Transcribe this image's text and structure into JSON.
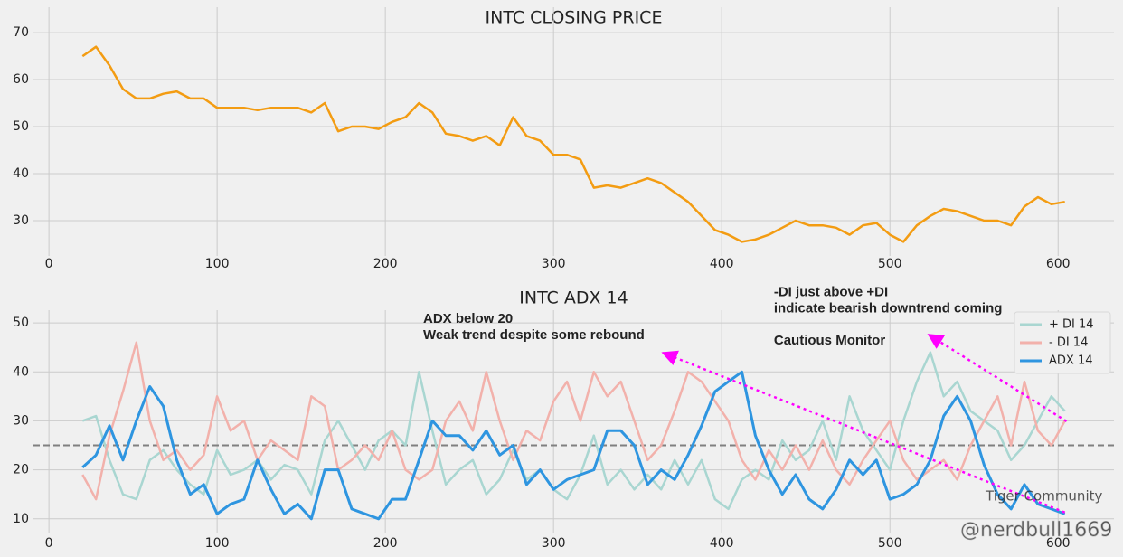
{
  "chart_data": [
    {
      "type": "line",
      "title": "INTC CLOSING PRICE",
      "x": [
        20,
        28,
        36,
        44,
        52,
        60,
        68,
        76,
        84,
        92,
        100,
        108,
        116,
        124,
        132,
        140,
        148,
        156,
        164,
        172,
        180,
        188,
        196,
        204,
        212,
        220,
        228,
        236,
        244,
        252,
        260,
        268,
        276,
        284,
        292,
        300,
        308,
        316,
        324,
        332,
        340,
        348,
        356,
        364,
        372,
        380,
        388,
        396,
        404,
        412,
        420,
        428,
        436,
        444,
        452,
        460,
        468,
        476,
        484,
        492,
        500,
        508,
        516,
        524,
        532,
        540,
        548,
        556,
        564,
        572,
        580,
        588,
        596,
        604
      ],
      "series": [
        {
          "color": "#f39c12",
          "values": [
            65,
            67,
            63,
            58,
            56,
            56,
            57,
            57.5,
            56,
            56,
            54,
            54,
            54,
            53.5,
            54,
            54,
            54,
            53,
            55,
            49,
            50,
            50,
            49.5,
            51,
            52,
            55,
            53,
            48.5,
            48,
            47,
            48,
            46,
            52,
            48,
            47,
            44,
            44,
            43,
            37,
            37.5,
            37,
            38,
            39,
            38,
            36,
            34,
            31,
            28,
            27,
            25.5,
            26,
            27,
            28.5,
            30,
            29,
            29,
            28.5,
            27,
            29,
            29.5,
            27,
            25.5,
            29,
            31,
            32.5,
            32,
            31,
            30,
            30,
            29,
            33,
            35,
            33.5,
            34
          ]
        }
      ],
      "xlim": [
        -9.2,
        633.2
      ],
      "xticks": [
        0,
        100,
        200,
        300,
        400,
        500,
        600
      ],
      "ylim": [
        22.5,
        75.4
      ],
      "yticks": [
        30,
        40,
        50,
        60,
        70
      ],
      "grid": true
    },
    {
      "type": "line",
      "title": "INTC ADX 14",
      "x": [
        20,
        28,
        36,
        44,
        52,
        60,
        68,
        76,
        84,
        92,
        100,
        108,
        116,
        124,
        132,
        140,
        148,
        156,
        164,
        172,
        180,
        188,
        196,
        204,
        212,
        220,
        228,
        236,
        244,
        252,
        260,
        268,
        276,
        284,
        292,
        300,
        308,
        316,
        324,
        332,
        340,
        348,
        356,
        364,
        372,
        380,
        388,
        396,
        404,
        412,
        420,
        428,
        436,
        444,
        452,
        460,
        468,
        476,
        484,
        492,
        500,
        508,
        516,
        524,
        532,
        540,
        548,
        556,
        564,
        572,
        580,
        588,
        596,
        604
      ],
      "series": [
        {
          "name": "+ DI 14",
          "color": "#a9d6d1",
          "values": [
            30,
            31,
            22,
            15,
            14,
            22,
            24,
            20,
            17,
            15,
            24,
            19,
            20,
            22,
            18,
            21,
            20,
            15,
            26,
            30,
            25,
            20,
            26,
            28,
            25,
            40,
            28,
            17,
            20,
            22,
            15,
            18,
            24,
            18,
            20,
            16,
            14,
            19,
            27,
            17,
            20,
            16,
            19,
            16,
            22,
            17,
            22,
            14,
            12,
            18,
            20,
            18,
            26,
            22,
            24,
            30,
            22,
            35,
            28,
            24,
            20,
            30,
            38,
            44,
            35,
            38,
            32,
            30,
            28,
            22,
            25,
            30,
            35,
            32
          ]
        },
        {
          "name": "- DI 14",
          "color": "#f2b1ab",
          "values": [
            19,
            14,
            27,
            36,
            46,
            30,
            22,
            24,
            20,
            23,
            35,
            28,
            30,
            22,
            26,
            24,
            22,
            35,
            33,
            20,
            22,
            25,
            22,
            28,
            20,
            18,
            20,
            30,
            34,
            28,
            40,
            30,
            22,
            28,
            26,
            34,
            38,
            30,
            40,
            35,
            38,
            30,
            22,
            25,
            32,
            40,
            38,
            34,
            30,
            22,
            18,
            24,
            20,
            25,
            20,
            26,
            20,
            17,
            22,
            26,
            30,
            22,
            18,
            20,
            22,
            18,
            25,
            30,
            35,
            25,
            38,
            28,
            25,
            30
          ]
        },
        {
          "name": "ADX 14",
          "color": "#2e95e0",
          "values": [
            20.5,
            23,
            29,
            22,
            30,
            37,
            33,
            22,
            15,
            17,
            11,
            13,
            14,
            22,
            16,
            11,
            13,
            10,
            20,
            20,
            12,
            11,
            10,
            14,
            14,
            22,
            30,
            27,
            27,
            24,
            28,
            23,
            25,
            17,
            20,
            16,
            18,
            19,
            20,
            28,
            28,
            25,
            17,
            20,
            18,
            23,
            29,
            36,
            38,
            40,
            27,
            20,
            15,
            19,
            14,
            12,
            16,
            22,
            19,
            22,
            14,
            15,
            17,
            22,
            31,
            35,
            30,
            21,
            15,
            12,
            17,
            13,
            12,
            11
          ]
        }
      ],
      "hline": {
        "value": 25,
        "color": "#808080"
      },
      "annotations": [
        {
          "lines": [
            "ADX below 20",
            "Weak trend despite some rebound"
          ],
          "x": 222.5,
          "y": 50,
          "color": "#ff00ff"
        },
        {
          "lines": [
            "-DI just above +DI",
            "indicate bearish downtrend coming"
          ],
          "x": 431,
          "y": 55.5,
          "color": "#ff00ff"
        },
        {
          "lines": [
            "Cautious Monitor"
          ],
          "x": 431,
          "y": 45.6,
          "color": "#ff00ff"
        }
      ],
      "arrows": [
        {
          "from": [
            604,
            11.3
          ],
          "to": [
            365,
            43.9
          ],
          "color": "#ff00ff"
        },
        {
          "from": [
            605,
            29.9
          ],
          "to": [
            523,
            47.6
          ],
          "color": "#ff00ff"
        }
      ],
      "xlim": [
        -9.2,
        633.2
      ],
      "xticks": [
        0,
        100,
        200,
        300,
        400,
        500,
        600
      ],
      "ylim": [
        7,
        52.6
      ],
      "yticks": [
        10,
        20,
        30,
        40,
        50
      ],
      "grid": true,
      "legend": "upper right"
    }
  ],
  "watermark": [
    "Tiger Community",
    "@nerdbull1669"
  ]
}
